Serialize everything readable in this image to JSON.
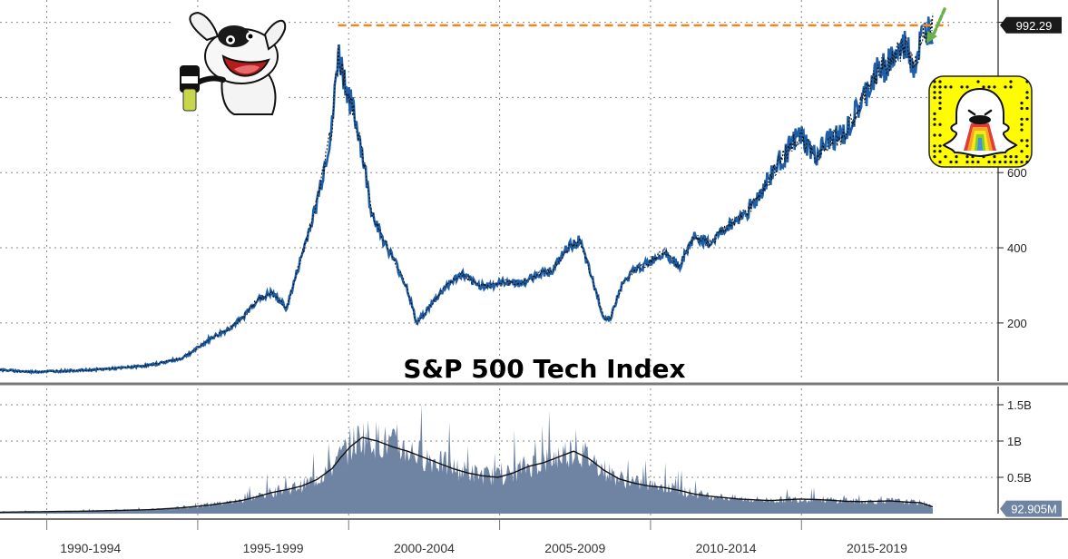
{
  "chart_data": [
    {
      "type": "line",
      "title": "S&P 500 Tech Index",
      "panel": "price",
      "ylim": [
        50,
        1040
      ],
      "grid": true,
      "y_ticks": [
        {
          "value": 200,
          "label": "200"
        },
        {
          "value": 400,
          "label": "400"
        },
        {
          "value": 600,
          "label": "600"
        }
      ],
      "last_value": 992.29,
      "last_value_label": "992.29",
      "peak_level": 992,
      "series": [
        {
          "color": "#1f5fa8",
          "x": [
            1989.0,
            1990.0,
            1991.0,
            1992.0,
            1993.0,
            1994.0,
            1995.0,
            1995.5,
            1996.0,
            1996.5,
            1997.0,
            1997.5,
            1998.0,
            1998.5,
            1999.0,
            1999.5,
            2000.0,
            2000.2,
            2000.5,
            2000.9,
            2001.3,
            2001.7,
            2002.1,
            2002.5,
            2002.8,
            2003.3,
            2003.8,
            2004.3,
            2004.8,
            2005.3,
            2005.8,
            2006.3,
            2006.8,
            2007.3,
            2007.8,
            2008.2,
            2008.6,
            2009.0,
            2009.2,
            2009.6,
            2010.0,
            2010.5,
            2011.0,
            2011.5,
            2012.0,
            2012.5,
            2013.0,
            2013.5,
            2014.0,
            2014.5,
            2015.0,
            2015.5,
            2016.0,
            2016.5,
            2017.0,
            2017.5,
            2018.0,
            2018.5,
            2018.8,
            2019.0,
            2019.3,
            2019.5,
            2019.7,
            2019.9
          ],
          "y": [
            75,
            70,
            72,
            75,
            80,
            88,
            105,
            130,
            160,
            180,
            210,
            260,
            280,
            240,
            380,
            520,
            720,
            920,
            820,
            700,
            500,
            420,
            360,
            290,
            200,
            250,
            300,
            330,
            300,
            300,
            310,
            305,
            330,
            340,
            400,
            420,
            320,
            215,
            210,
            300,
            340,
            360,
            390,
            350,
            430,
            410,
            450,
            480,
            520,
            590,
            650,
            700,
            640,
            690,
            700,
            780,
            860,
            900,
            920,
            940,
            880,
            950,
            975,
            992
          ]
        }
      ]
    },
    {
      "type": "area",
      "panel": "volume",
      "ylim": [
        0,
        1700000000
      ],
      "grid": true,
      "y_ticks": [
        {
          "value": 500000000,
          "label": "0.5B"
        },
        {
          "value": 1000000000,
          "label": "1B"
        },
        {
          "value": 1500000000,
          "label": "1.5B"
        }
      ],
      "last_value": 92905000,
      "last_value_label": "92.905M",
      "series": [
        {
          "color": "#6f84a3",
          "x": [
            1989.0,
            1990.0,
            1991.0,
            1992.0,
            1993.0,
            1994.0,
            1995.0,
            1996.0,
            1997.0,
            1997.5,
            1998.0,
            1998.5,
            1999.0,
            1999.5,
            2000.0,
            2000.3,
            2000.6,
            2001.0,
            2001.5,
            2002.0,
            2002.5,
            2003.0,
            2003.5,
            2004.0,
            2004.5,
            2005.0,
            2005.5,
            2006.0,
            2006.5,
            2007.0,
            2007.5,
            2008.0,
            2008.5,
            2009.0,
            2009.5,
            2010.0,
            2010.5,
            2011.0,
            2011.5,
            2012.0,
            2012.5,
            2013.0,
            2013.5,
            2014.0,
            2014.5,
            2015.0,
            2015.5,
            2016.0,
            2016.5,
            2017.0,
            2017.5,
            2018.0,
            2018.5,
            2019.0,
            2019.5,
            2019.9
          ],
          "y": [
            20000000,
            25000000,
            30000000,
            35000000,
            45000000,
            55000000,
            80000000,
            120000000,
            180000000,
            230000000,
            290000000,
            330000000,
            380000000,
            470000000,
            620000000,
            780000000,
            920000000,
            1050000000,
            1000000000,
            920000000,
            860000000,
            780000000,
            700000000,
            620000000,
            560000000,
            520000000,
            500000000,
            560000000,
            650000000,
            700000000,
            780000000,
            860000000,
            760000000,
            600000000,
            480000000,
            420000000,
            380000000,
            360000000,
            320000000,
            270000000,
            240000000,
            220000000,
            200000000,
            190000000,
            180000000,
            190000000,
            200000000,
            195000000,
            185000000,
            170000000,
            165000000,
            170000000,
            175000000,
            160000000,
            150000000,
            92905000
          ]
        }
      ]
    }
  ],
  "x_axis": {
    "periods": [
      "1990-1994",
      "1995-1999",
      "2000-2004",
      "2005-2009",
      "2010-2014",
      "2015-2019"
    ]
  },
  "colors": {
    "price_line": "#1f5fa8",
    "price_line_dark": "#111111",
    "volume_fill": "#6f84a3",
    "peak_dash": "#f5861f",
    "arrow": "#6ab04c",
    "snapcode_yellow": "#fffc00"
  },
  "decorations": {
    "mascot": "dog-mascot-with-microphone",
    "qr": "snapcode-ghost"
  }
}
